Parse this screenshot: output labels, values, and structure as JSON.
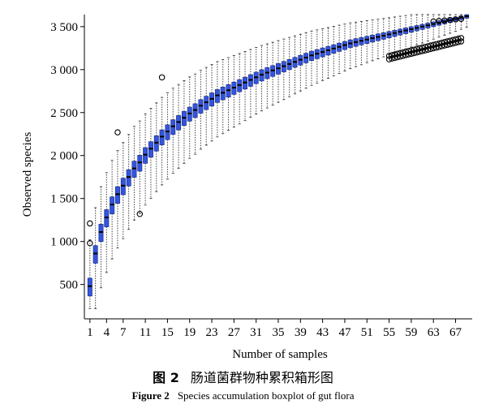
{
  "chart_data": {
    "type": "boxplot",
    "xlabel": "Number of samples",
    "ylabel": "Observed species",
    "x_tick_labels": [
      "1",
      "4",
      "7",
      "11",
      "15",
      "19",
      "23",
      "27",
      "31",
      "35",
      "39",
      "43",
      "47",
      "51",
      "55",
      "59",
      "63",
      "67"
    ],
    "y_tick_labels": [
      "500",
      "1 000",
      "1 500",
      "2 000",
      "2 500",
      "3 000",
      "3 500"
    ],
    "y_ticks": [
      500,
      1000,
      1500,
      2000,
      2500,
      3000,
      3500
    ],
    "xlim": [
      0,
      70
    ],
    "ylim": [
      100,
      3640
    ],
    "n_samples": 69,
    "box_color": "#3355dd",
    "median_values": [
      480,
      860,
      1110,
      1280,
      1430,
      1550,
      1650,
      1750,
      1850,
      1920,
      2010,
      2080,
      2150,
      2220,
      2280,
      2340,
      2390,
      2440,
      2490,
      2530,
      2580,
      2620,
      2660,
      2700,
      2730,
      2760,
      2790,
      2820,
      2850,
      2880,
      2910,
      2940,
      2965,
      2990,
      3015,
      3040,
      3065,
      3090,
      3115,
      3140,
      3165,
      3185,
      3205,
      3225,
      3245,
      3265,
      3285,
      3305,
      3320,
      3335,
      3350,
      3365,
      3380,
      3395,
      3410,
      3425,
      3440,
      3455,
      3470,
      3485,
      3500,
      3515,
      3530,
      3545,
      3560,
      3575,
      3590,
      3605,
      3620
    ]
  },
  "caption": {
    "figure_cn": "图 2",
    "title_cn": "肠道菌群物种累积箱形图",
    "figure_en": "Figure 2",
    "title_en": "Species accumulation boxplot of gut flora"
  }
}
